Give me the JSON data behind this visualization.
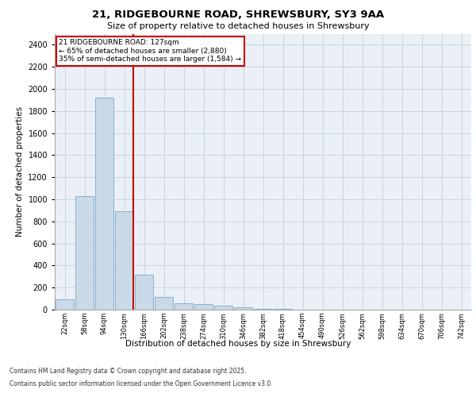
{
  "title_line1": "21, RIDGEBOURNE ROAD, SHREWSBURY, SY3 9AA",
  "title_line2": "Size of property relative to detached houses in Shrewsbury",
  "xlabel": "Distribution of detached houses by size in Shrewsbury",
  "ylabel": "Number of detached properties",
  "bar_labels": [
    "22sqm",
    "58sqm",
    "94sqm",
    "130sqm",
    "166sqm",
    "202sqm",
    "238sqm",
    "274sqm",
    "310sqm",
    "346sqm",
    "382sqm",
    "418sqm",
    "454sqm",
    "490sqm",
    "526sqm",
    "562sqm",
    "598sqm",
    "634sqm",
    "670sqm",
    "706sqm",
    "742sqm"
  ],
  "bar_values": [
    90,
    1030,
    1920,
    890,
    320,
    115,
    55,
    50,
    35,
    20,
    10,
    5,
    3,
    2,
    1,
    1,
    0,
    0,
    0,
    0,
    0
  ],
  "bar_color": "#c9d9e8",
  "bar_edge_color": "#7aa8c8",
  "grid_color": "#c8d4e0",
  "background_color": "#eaf0f6",
  "vline_color": "#cc0000",
  "vline_pos": 3.45,
  "annotation_text": "21 RIDGEBOURNE ROAD: 127sqm\n← 65% of detached houses are smaller (2,880)\n35% of semi-detached houses are larger (1,584) →",
  "annotation_box_color": "#ffffff",
  "annotation_box_edge": "#cc0000",
  "ylim": [
    0,
    2500
  ],
  "yticks": [
    0,
    200,
    400,
    600,
    800,
    1000,
    1200,
    1400,
    1600,
    1800,
    2000,
    2200,
    2400
  ],
  "footer_line1": "Contains HM Land Registry data © Crown copyright and database right 2025.",
  "footer_line2": "Contains public sector information licensed under the Open Government Licence v3.0."
}
